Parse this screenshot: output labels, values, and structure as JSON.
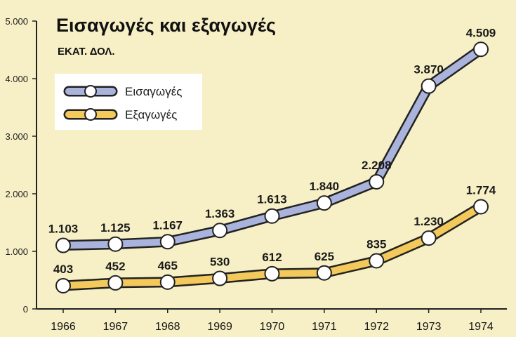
{
  "chart_data": {
    "type": "line",
    "title": "Εισαγωγές και εξαγωγές",
    "subtitle": "ΕΚΑΤ. ΔΟΛ.",
    "categories": [
      "1966",
      "1967",
      "1968",
      "1969",
      "1970",
      "1971",
      "1972",
      "1973",
      "1974"
    ],
    "series": [
      {
        "name": "Εισαγωγές",
        "values": [
          1103,
          1125,
          1167,
          1363,
          1613,
          1840,
          2208,
          3870,
          4509
        ],
        "labels": [
          "1.103",
          "1.125",
          "1.167",
          "1.363",
          "1.613",
          "1.840",
          "2.208",
          "3.870",
          "4.509"
        ],
        "color": "#a9b3dc",
        "outline": "#222222"
      },
      {
        "name": "Εξαγωγές",
        "values": [
          403,
          452,
          465,
          530,
          612,
          625,
          835,
          1230,
          1774
        ],
        "labels": [
          "403",
          "452",
          "465",
          "530",
          "612",
          "625",
          "835",
          "1.230",
          "1.774"
        ],
        "color": "#f2c95a",
        "outline": "#222222"
      }
    ],
    "yticks": [
      0,
      1000,
      2000,
      3000,
      4000,
      5000
    ],
    "ytick_labels": [
      "0",
      "1.000",
      "2.000",
      "3.000",
      "4.000",
      "5.000"
    ],
    "ylim": [
      0,
      5000
    ],
    "grid": false,
    "legend_position": "top-left"
  },
  "colors": {
    "background": "#f7f0c6",
    "legend_box": "#ffffff",
    "axis": "#222222"
  }
}
